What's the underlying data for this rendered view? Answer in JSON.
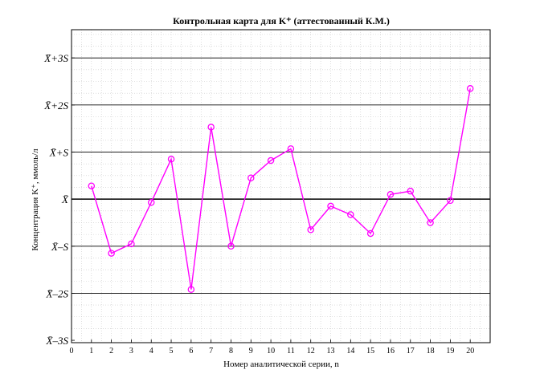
{
  "chart_data": {
    "type": "line",
    "title": "Контрольная карта для K⁺ (аттестованный К.М.)",
    "xlabel": "Номер аналитической серии, n",
    "ylabel": "Концентрация K⁺, ммоль/л",
    "xlim": [
      0,
      21
    ],
    "ylim": [
      -3.05,
      3.6
    ],
    "x_ticks": [
      0,
      1,
      2,
      3,
      4,
      5,
      6,
      7,
      8,
      9,
      10,
      11,
      12,
      13,
      14,
      15,
      16,
      17,
      18,
      19,
      20
    ],
    "y_ticks": [
      {
        "value": 3,
        "label": "X̄+3S"
      },
      {
        "value": 2,
        "label": "X̄+2S"
      },
      {
        "value": 1,
        "label": "X̄+S"
      },
      {
        "value": 0,
        "label": "X̄"
      },
      {
        "value": -1,
        "label": "X̄–S"
      },
      {
        "value": -2,
        "label": "X̄–2S"
      },
      {
        "value": -3,
        "label": "X̄–3S"
      }
    ],
    "grid": true,
    "series": [
      {
        "color": "#ff00ff",
        "x": [
          1,
          2,
          3,
          4,
          5,
          6,
          7,
          8,
          9,
          10,
          11,
          12,
          13,
          14,
          15,
          16,
          17,
          18,
          19,
          20
        ],
        "y": [
          0.28,
          -1.15,
          -0.95,
          -0.07,
          0.85,
          -1.92,
          1.53,
          -1.0,
          0.45,
          0.82,
          1.07,
          -0.65,
          -0.15,
          -0.33,
          -0.73,
          0.1,
          0.17,
          -0.5,
          -0.03,
          2.35
        ]
      }
    ]
  }
}
